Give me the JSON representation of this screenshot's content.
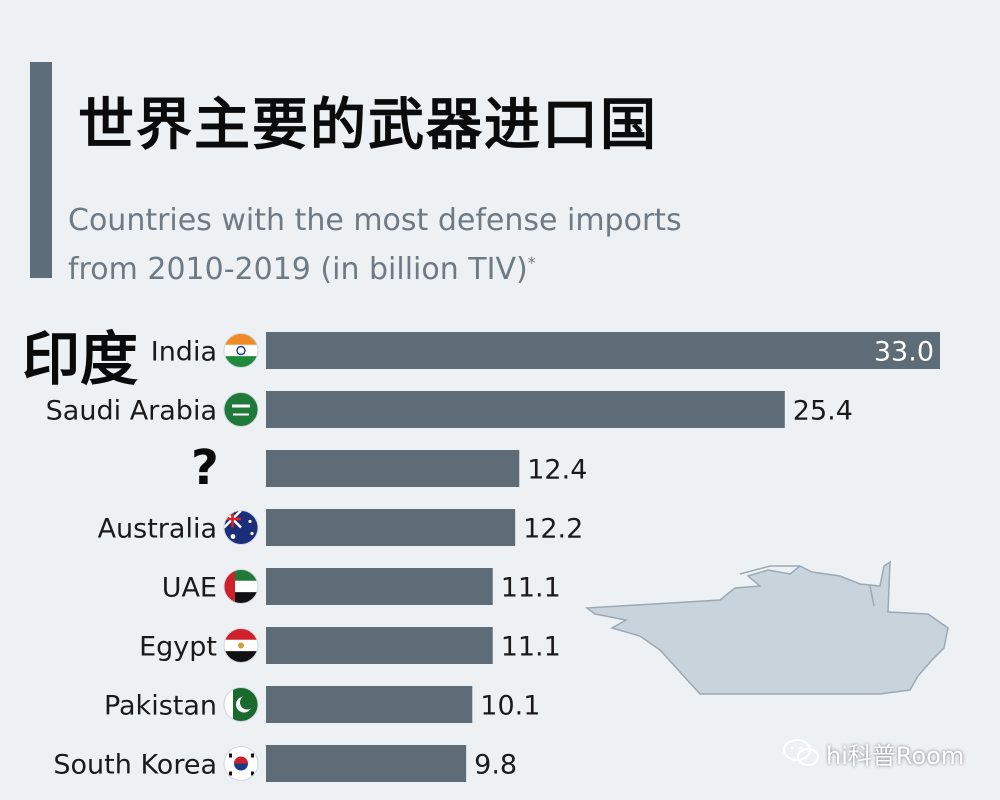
{
  "header": {
    "title": "世界主要的武器进口国",
    "subtitle_line1": "Countries with the most defense imports",
    "subtitle_line2": "from 2010-2019 (in billion TIV)",
    "subtitle_mark": "*"
  },
  "annotations": {
    "india_chinese": "印度",
    "mystery_label": "?"
  },
  "watermark": {
    "text": "hi科普Room",
    "icon": "wechat-icon"
  },
  "colors": {
    "bar": "#5d6c77",
    "accent": "#5d6e7a",
    "background": "#eef1f4",
    "tank": "#c9d3db"
  },
  "chart_data": {
    "type": "bar",
    "orientation": "horizontal",
    "categories": [
      "India",
      "Saudi Arabia",
      "",
      "Australia",
      "UAE",
      "Egypt",
      "Pakistan",
      "South Korea"
    ],
    "values": [
      33.0,
      25.4,
      12.4,
      12.2,
      11.1,
      11.1,
      10.1,
      9.8
    ],
    "value_labels": [
      "33.0",
      "25.4",
      "12.4",
      "12.2",
      "11.1",
      "11.1",
      "10.1",
      "9.8"
    ],
    "flag_icons": [
      "india-flag-icon",
      "saudi-arabia-flag-icon",
      "",
      "australia-flag-icon",
      "uae-flag-icon",
      "egypt-flag-icon",
      "pakistan-flag-icon",
      "south-korea-flag-icon"
    ],
    "title": "世界主要的武器进口国",
    "xlim": [
      0,
      33.0
    ],
    "grid": false,
    "legend": "none"
  }
}
